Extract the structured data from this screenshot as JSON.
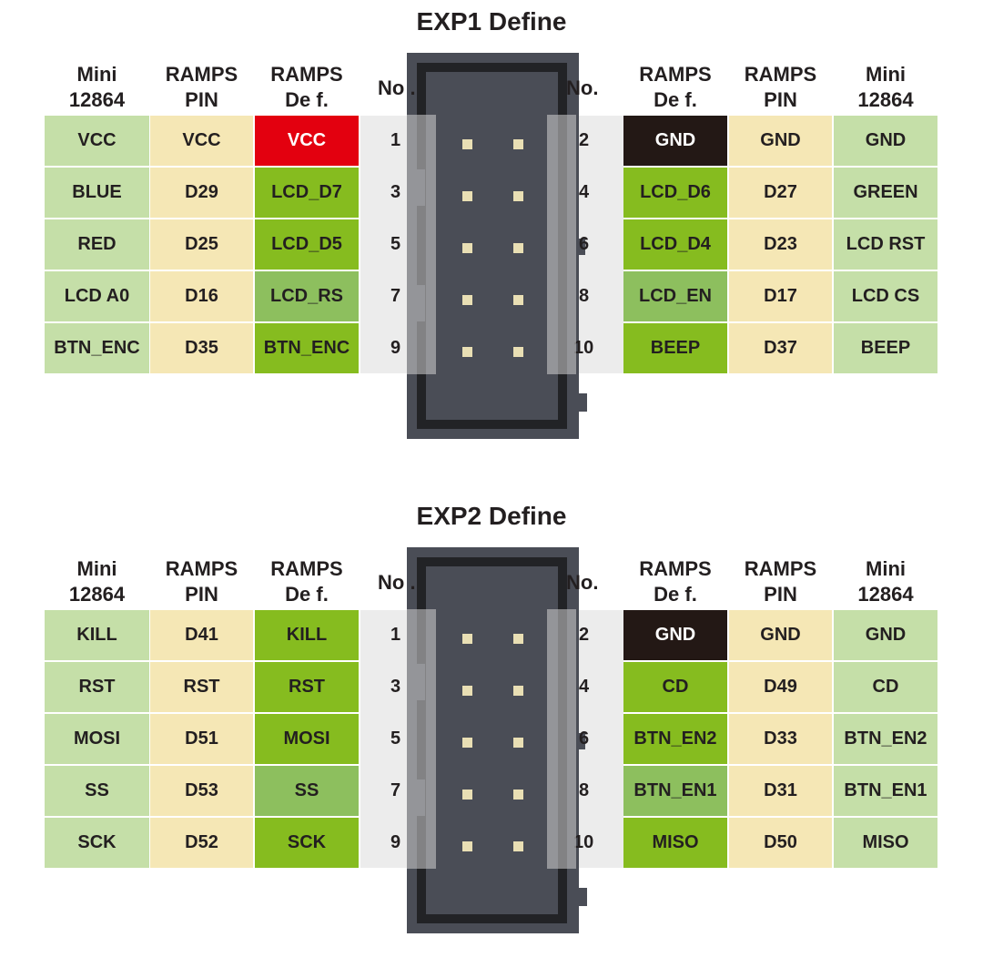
{
  "sections": [
    {
      "title": "EXP1 Define",
      "headers": {
        "left": [
          [
            "Mini",
            "12864"
          ],
          [
            "RAMPS",
            "PIN"
          ],
          [
            "RAMPS",
            "De f."
          ]
        ],
        "right": [
          [
            "RAMPS",
            "De f."
          ],
          [
            "RAMPS",
            "PIN"
          ],
          [
            "Mini",
            "12864"
          ]
        ],
        "no_left": "No .",
        "no_right": "No."
      },
      "rows": [
        {
          "l_mini": "VCC",
          "l_pin": "VCC",
          "l_def": "VCC",
          "l_no": "1",
          "r_no": "2",
          "r_def": "GND",
          "r_pin": "GND",
          "r_mini": "GND"
        },
        {
          "l_mini": "BLUE",
          "l_pin": "D29",
          "l_def": "LCD_D7",
          "l_no": "3",
          "r_no": "4",
          "r_def": "LCD_D6",
          "r_pin": "D27",
          "r_mini": "GREEN"
        },
        {
          "l_mini": "RED",
          "l_pin": "D25",
          "l_def": "LCD_D5",
          "l_no": "5",
          "r_no": "6",
          "r_def": "LCD_D4",
          "r_pin": "D23",
          "r_mini": "LCD RST"
        },
        {
          "l_mini": "LCD A0",
          "l_pin": "D16",
          "l_def": "LCD_RS",
          "l_no": "7",
          "r_no": "8",
          "r_def": "LCD_EN",
          "r_pin": "D17",
          "r_mini": "LCD CS"
        },
        {
          "l_mini": "BTN_ENC",
          "l_pin": "D35",
          "l_def": "BTN_ENC",
          "l_no": "9",
          "r_no": "10",
          "r_def": "BEEP",
          "r_pin": "D37",
          "r_mini": "BEEP"
        }
      ],
      "def_colors": {
        "left": [
          "#e3000f",
          "#86bc1f",
          "#86bc1f",
          "#8dbf5e",
          "#86bc1f"
        ],
        "right": [
          "#231815",
          "#86bc1f",
          "#86bc1f",
          "#8dbf5e",
          "#86bc1f"
        ]
      }
    },
    {
      "title": "EXP2 Define",
      "headers": {
        "left": [
          [
            "Mini",
            "12864"
          ],
          [
            "RAMPS",
            "PIN"
          ],
          [
            "RAMPS",
            "De f."
          ]
        ],
        "right": [
          [
            "RAMPS",
            "De f."
          ],
          [
            "RAMPS",
            "PIN"
          ],
          [
            "Mini",
            "12864"
          ]
        ],
        "no_left": "No .",
        "no_right": "No."
      },
      "rows": [
        {
          "l_mini": "KILL",
          "l_pin": "D41",
          "l_def": "KILL",
          "l_no": "1",
          "r_no": "2",
          "r_def": "GND",
          "r_pin": "GND",
          "r_mini": "GND"
        },
        {
          "l_mini": "RST",
          "l_pin": "RST",
          "l_def": "RST",
          "l_no": "3",
          "r_no": "4",
          "r_def": "CD",
          "r_pin": "D49",
          "r_mini": "CD"
        },
        {
          "l_mini": "MOSI",
          "l_pin": "D51",
          "l_def": "MOSI",
          "l_no": "5",
          "r_no": "6",
          "r_def": "BTN_EN2",
          "r_pin": "D33",
          "r_mini": "BTN_EN2"
        },
        {
          "l_mini": "SS",
          "l_pin": "D53",
          "l_def": "SS",
          "l_no": "7",
          "r_no": "8",
          "r_def": "BTN_EN1",
          "r_pin": "D31",
          "r_mini": "BTN_EN1"
        },
        {
          "l_mini": "SCK",
          "l_pin": "D52",
          "l_def": "SCK",
          "l_no": "9",
          "r_no": "10",
          "r_def": "MISO",
          "r_pin": "D50",
          "r_mini": "MISO"
        }
      ],
      "def_colors": {
        "left": [
          "#86bc1f",
          "#86bc1f",
          "#86bc1f",
          "#8dbf5e",
          "#86bc1f"
        ],
        "right": [
          "#231815",
          "#86bc1f",
          "#86bc1f",
          "#8dbf5e",
          "#86bc1f"
        ]
      }
    }
  ],
  "colors": {
    "mini": "#c5dfa8",
    "pin": "#f5e7b5",
    "number_bg": "#ececec",
    "connector": "#4a4d56",
    "pin_dot": "#e9dfb4"
  }
}
